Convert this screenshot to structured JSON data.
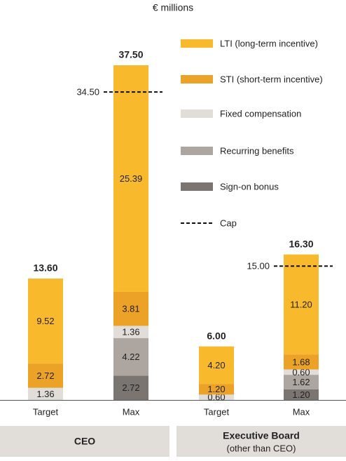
{
  "chart_data": {
    "type": "stacked_bar",
    "subtitle": "€ millions",
    "categories": [
      "Target",
      "Max",
      "Target",
      "Max"
    ],
    "groups": [
      {
        "label": "CEO"
      },
      {
        "label": "Executive Board",
        "sublabel": "(other than CEO)"
      }
    ],
    "series": [
      {
        "name": "Sign-on bonus",
        "color": "#7b7572",
        "values": [
          null,
          2.72,
          null,
          1.2
        ],
        "value_labels": [
          null,
          "2.72",
          null,
          "1.20"
        ]
      },
      {
        "name": "Recurring benefits",
        "color": "#aca5a0",
        "values": [
          null,
          4.22,
          null,
          1.62
        ],
        "value_labels": [
          null,
          "4.22",
          null,
          "1.62"
        ]
      },
      {
        "name": "Fixed compensation",
        "color": "#e1ddd9",
        "values": [
          1.36,
          1.36,
          0.6,
          0.6
        ],
        "value_labels": [
          "1.36",
          "1.36",
          "0.60",
          "0.60"
        ]
      },
      {
        "name": "STI (short-term incentive)",
        "color": "#eba226",
        "values": [
          2.72,
          3.81,
          1.2,
          1.68
        ],
        "value_labels": [
          "2.72",
          "3.81",
          "1.20",
          "1.68"
        ]
      },
      {
        "name": "LTI (long-term incentive)",
        "color": "#f8b92c",
        "values": [
          9.52,
          25.39,
          4.2,
          11.2
        ],
        "value_labels": [
          "9.52",
          "25.39",
          "4.20",
          "11.20"
        ]
      }
    ],
    "totals": [
      13.6,
      37.5,
      6,
      16.3
    ],
    "total_labels": [
      "13.60",
      "37.50",
      "6.00",
      "16.30"
    ],
    "caps": [
      null,
      34.5,
      null,
      15
    ],
    "cap_labels": [
      null,
      "34.50",
      null,
      "15.00"
    ],
    "cap_name": "Cap"
  }
}
